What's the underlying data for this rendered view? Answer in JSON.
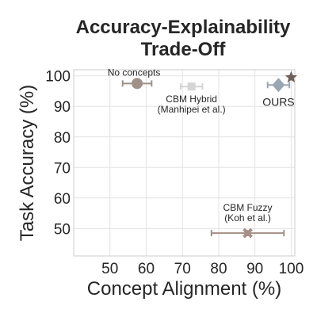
{
  "chart_data": {
    "type": "scatter",
    "title": [
      "Accuracy-Explainability",
      "Trade-Off"
    ],
    "xlabel": "Concept Alignment (%)",
    "ylabel": "Task Accuracy (%)",
    "xlim": [
      40,
      101
    ],
    "ylim": [
      41,
      102
    ],
    "xticks": [
      50,
      60,
      70,
      80,
      90,
      100
    ],
    "yticks": [
      50,
      60,
      70,
      80,
      90,
      100
    ],
    "grid": true,
    "points": [
      {
        "label": [
          "No concepts"
        ],
        "x": 57.5,
        "y": 97.5,
        "xerr": 4,
        "yerr": 0.8,
        "marker": "circle",
        "color": "#9e9189"
      },
      {
        "label": [
          "CBM Hybrid",
          "(Manhipei et al.)"
        ],
        "x": 72.5,
        "y": 96.5,
        "xerr": 3,
        "yerr": 0.8,
        "marker": "square",
        "color": "#d4d4d4"
      },
      {
        "label": [
          "CBM Fuzzy",
          "(Koh et al.)"
        ],
        "x": 88,
        "y": 48.5,
        "xerr": 10,
        "yerr": 1,
        "marker": "x",
        "color": "#a58f86"
      },
      {
        "label": [
          "OURS"
        ],
        "x": 96.5,
        "y": 97,
        "xerr": 3,
        "yerr": 1,
        "marker": "diamond",
        "color": "#9aa6b2"
      },
      {
        "label": [],
        "x": 100,
        "y": 99.5,
        "xerr": 0,
        "yerr": 0,
        "marker": "star",
        "color": "#6e605b"
      }
    ]
  }
}
